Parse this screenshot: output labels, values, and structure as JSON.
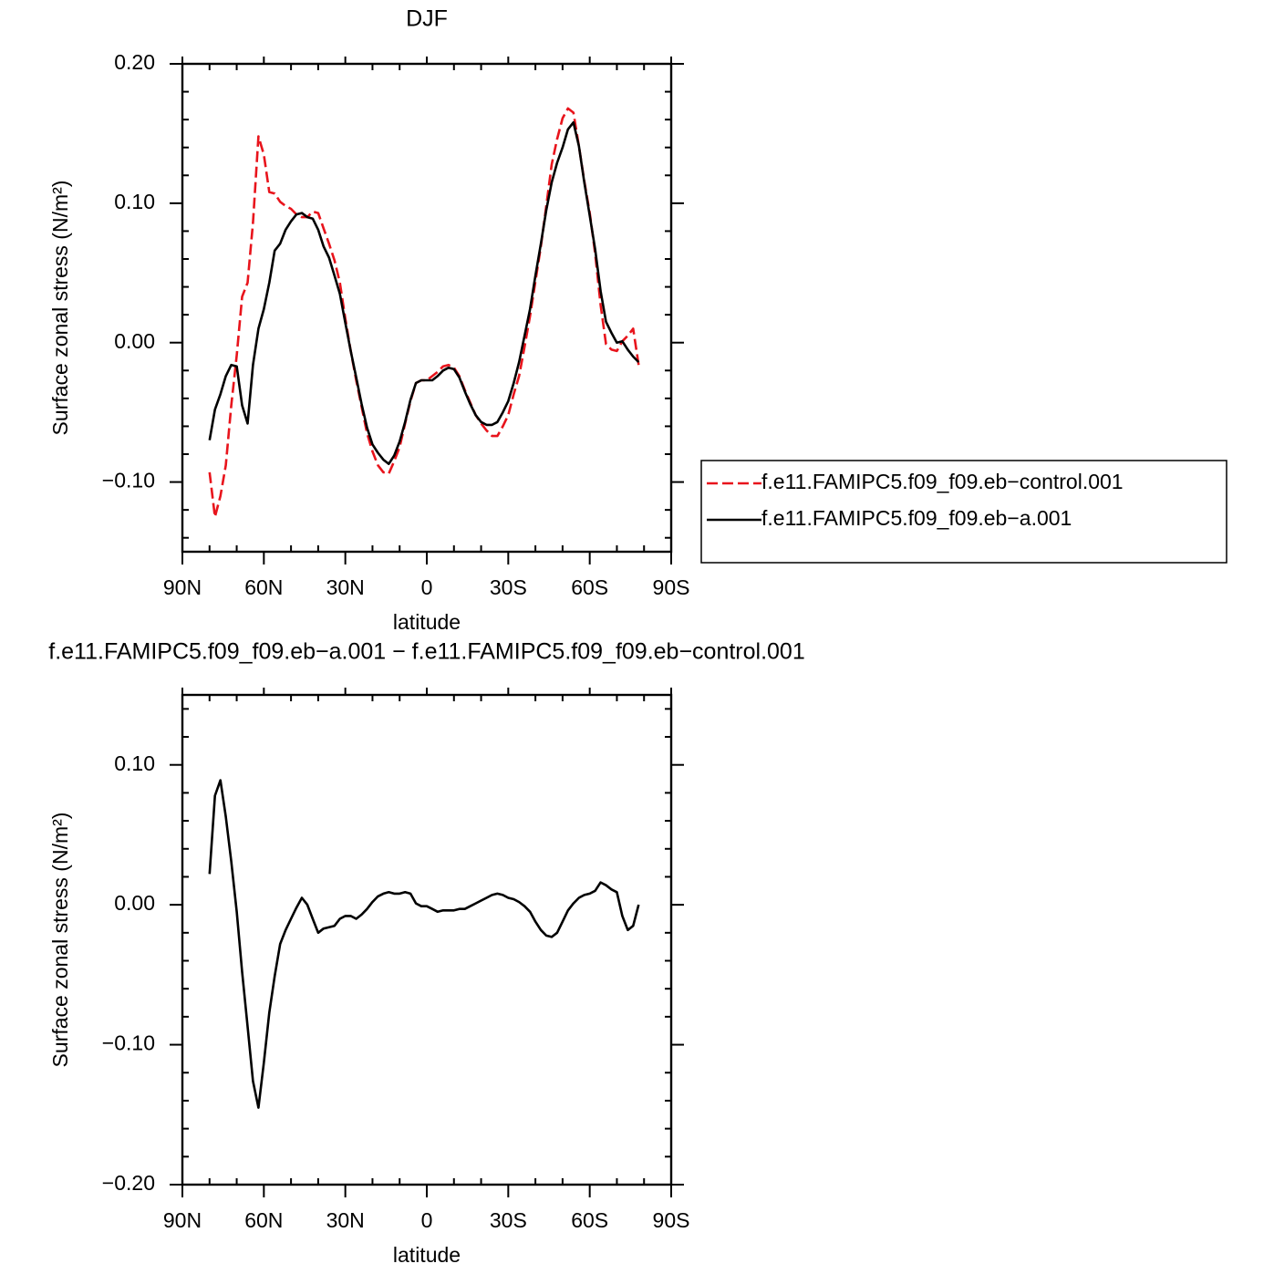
{
  "chart_data": [
    {
      "type": "line",
      "title": "DJF",
      "xlabel": "latitude",
      "ylabel": "Surface zonal stress (N/m²)",
      "x": [
        80,
        78,
        76,
        74,
        72,
        70,
        68,
        66,
        64,
        62,
        60,
        58,
        56,
        54,
        52,
        50,
        48,
        46,
        44,
        42,
        40,
        38,
        36,
        34,
        32,
        30,
        28,
        26,
        24,
        22,
        20,
        18,
        16,
        14,
        12,
        10,
        8,
        6,
        4,
        2,
        0,
        -2,
        -4,
        -6,
        -8,
        -10,
        -12,
        -14,
        -16,
        -18,
        -20,
        -22,
        -24,
        -26,
        -28,
        -30,
        -32,
        -34,
        -36,
        -38,
        -40,
        -42,
        -44,
        -46,
        -48,
        -50,
        -52,
        -54,
        -56,
        -58,
        -60,
        -62,
        -64,
        -66,
        -68,
        -70,
        -72,
        -74,
        -76,
        -78
      ],
      "series": [
        {
          "name": "f.e11.FAMIPC5.f09_f09.eb−control.001",
          "color": "#e8141c",
          "linestyle": "dashed",
          "values": [
            -0.093,
            -0.125,
            -0.11,
            -0.088,
            -0.045,
            -0.009,
            0.033,
            0.043,
            0.086,
            0.148,
            0.135,
            0.108,
            0.107,
            0.101,
            0.098,
            0.096,
            0.092,
            0.09,
            0.09,
            0.094,
            0.093,
            0.082,
            0.071,
            0.059,
            0.043,
            0.017,
            -0.006,
            -0.027,
            -0.046,
            -0.065,
            -0.078,
            -0.088,
            -0.093,
            -0.094,
            -0.085,
            -0.075,
            -0.058,
            -0.042,
            -0.029,
            -0.027,
            -0.027,
            -0.024,
            -0.021,
            -0.017,
            -0.016,
            -0.018,
            -0.024,
            -0.034,
            -0.043,
            -0.052,
            -0.058,
            -0.063,
            -0.067,
            -0.067,
            -0.06,
            -0.052,
            -0.037,
            -0.024,
            -0.003,
            0.019,
            0.044,
            0.069,
            0.098,
            0.128,
            0.146,
            0.161,
            0.168,
            0.165,
            0.141,
            0.116,
            0.093,
            0.064,
            0.027,
            -0.001,
            -0.005,
            -0.006,
            0.001,
            0.005,
            0.01,
            -0.016
          ]
        },
        {
          "name": "f.e11.FAMIPC5.f09_f09.eb−a.001",
          "color": "#000000",
          "linestyle": "solid",
          "values": [
            -0.07,
            -0.048,
            -0.037,
            -0.024,
            -0.016,
            -0.017,
            -0.045,
            -0.058,
            -0.016,
            0.01,
            0.024,
            0.043,
            0.066,
            0.071,
            0.081,
            0.087,
            0.092,
            0.093,
            0.09,
            0.089,
            0.081,
            0.069,
            0.061,
            0.048,
            0.035,
            0.014,
            -0.006,
            -0.025,
            -0.044,
            -0.061,
            -0.073,
            -0.079,
            -0.084,
            -0.087,
            -0.081,
            -0.071,
            -0.057,
            -0.041,
            -0.029,
            -0.027,
            -0.027,
            -0.027,
            -0.024,
            -0.02,
            -0.018,
            -0.019,
            -0.025,
            -0.035,
            -0.044,
            -0.052,
            -0.057,
            -0.059,
            -0.059,
            -0.057,
            -0.05,
            -0.042,
            -0.029,
            -0.014,
            0.005,
            0.024,
            0.048,
            0.071,
            0.095,
            0.115,
            0.129,
            0.14,
            0.153,
            0.158,
            0.141,
            0.115,
            0.091,
            0.067,
            0.037,
            0.015,
            0.007,
            0.0,
            0.001,
            -0.005,
            -0.01,
            -0.014
          ]
        }
      ],
      "xlim": [
        90,
        -90
      ],
      "xticks": [
        {
          "value": 90,
          "label": "90N"
        },
        {
          "value": 60,
          "label": "60N"
        },
        {
          "value": 30,
          "label": "30N"
        },
        0,
        {
          "value": -30,
          "label": "30S"
        },
        {
          "value": -60,
          "label": "60S"
        },
        {
          "value": -90,
          "label": "90S"
        }
      ],
      "ylim": [
        -0.15,
        0.2
      ],
      "yticks": [
        {
          "value": -0.1,
          "label": "−0.10"
        },
        {
          "value": 0,
          "label": "0.00"
        },
        {
          "value": 0.1,
          "label": "0.10"
        },
        {
          "value": 0.2,
          "label": "0.20"
        }
      ],
      "legend": "right"
    },
    {
      "type": "line",
      "title": "f.e11.FAMIPC5.f09_f09.eb−a.001 − f.e11.FAMIPC5.f09_f09.eb−control.001",
      "xlabel": "latitude",
      "ylabel": "Surface zonal stress (N/m²)",
      "x": [
        80,
        78,
        76,
        74,
        72,
        70,
        68,
        66,
        64,
        62,
        60,
        58,
        56,
        54,
        52,
        50,
        48,
        46,
        44,
        42,
        40,
        38,
        36,
        34,
        32,
        30,
        28,
        26,
        24,
        22,
        20,
        18,
        16,
        14,
        12,
        10,
        8,
        6,
        4,
        2,
        0,
        -2,
        -4,
        -6,
        -8,
        -10,
        -12,
        -14,
        -16,
        -18,
        -20,
        -22,
        -24,
        -26,
        -28,
        -30,
        -32,
        -34,
        -36,
        -38,
        -40,
        -42,
        -44,
        -46,
        -48,
        -50,
        -52,
        -54,
        -56,
        -58,
        -60,
        -62,
        -64,
        -66,
        -68,
        -70,
        -72,
        -74,
        -76,
        -78
      ],
      "series": [
        {
          "color": "#000000",
          "linestyle": "solid",
          "values": [
            0.022,
            0.078,
            0.089,
            0.063,
            0.031,
            -0.005,
            -0.048,
            -0.087,
            -0.126,
            -0.145,
            -0.113,
            -0.077,
            -0.051,
            -0.028,
            -0.018,
            -0.01,
            -0.002,
            0.005,
            0.0,
            -0.01,
            -0.02,
            -0.017,
            -0.016,
            -0.015,
            -0.01,
            -0.008,
            -0.008,
            -0.01,
            -0.007,
            -0.003,
            0.002,
            0.006,
            0.008,
            0.009,
            0.008,
            0.008,
            0.009,
            0.008,
            0.001,
            -0.001,
            -0.001,
            -0.003,
            -0.005,
            -0.004,
            -0.004,
            -0.004,
            -0.003,
            -0.003,
            -0.001,
            0.001,
            0.003,
            0.005,
            0.007,
            0.008,
            0.007,
            0.005,
            0.004,
            0.002,
            -0.001,
            -0.005,
            -0.012,
            -0.018,
            -0.022,
            -0.023,
            -0.02,
            -0.012,
            -0.004,
            0.001,
            0.005,
            0.007,
            0.008,
            0.01,
            0.016,
            0.014,
            0.011,
            0.009,
            -0.008,
            -0.018,
            -0.015,
            0.0
          ]
        }
      ],
      "xlim": [
        90,
        -90
      ],
      "xticks": [
        {
          "value": 90,
          "label": "90N"
        },
        {
          "value": 60,
          "label": "60N"
        },
        {
          "value": 30,
          "label": "30N"
        },
        0,
        {
          "value": -30,
          "label": "30S"
        },
        {
          "value": -60,
          "label": "60S"
        },
        {
          "value": -90,
          "label": "90S"
        }
      ],
      "ylim": [
        -0.2,
        0.15
      ],
      "yticks": [
        {
          "value": -0.2,
          "label": "−0.20"
        },
        {
          "value": -0.1,
          "label": "−0.10"
        },
        {
          "value": 0,
          "label": "0.00"
        },
        {
          "value": 0.1,
          "label": "0.10"
        }
      ]
    }
  ]
}
